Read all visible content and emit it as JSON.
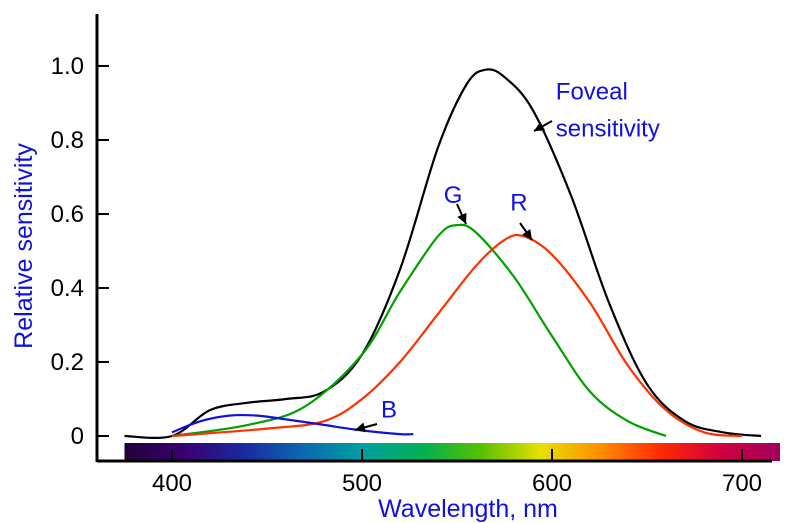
{
  "chart_data": {
    "type": "line",
    "title": "",
    "xlabel": "Wavelength, nm",
    "ylabel": "Relative sensitivity",
    "xlim": [
      375,
      720
    ],
    "ylim": [
      0,
      1.12
    ],
    "grid": false,
    "x_ticks": [
      "400",
      "500",
      "600",
      "700"
    ],
    "y_ticks": [
      "0",
      "0.2",
      "0.4",
      "0.6",
      "0.8",
      "1.0"
    ],
    "series": [
      {
        "name": "Foveal sensitivity",
        "color": "#000000",
        "points": [
          [
            375,
            0.0
          ],
          [
            400,
            0.0
          ],
          [
            420,
            0.07
          ],
          [
            440,
            0.09
          ],
          [
            460,
            0.1
          ],
          [
            480,
            0.12
          ],
          [
            500,
            0.22
          ],
          [
            520,
            0.45
          ],
          [
            540,
            0.78
          ],
          [
            555,
            0.95
          ],
          [
            565,
            0.99
          ],
          [
            575,
            0.97
          ],
          [
            590,
            0.88
          ],
          [
            610,
            0.65
          ],
          [
            630,
            0.36
          ],
          [
            650,
            0.14
          ],
          [
            670,
            0.04
          ],
          [
            690,
            0.01
          ],
          [
            710,
            0.0
          ]
        ]
      },
      {
        "name": "G",
        "color": "#00a000",
        "points": [
          [
            400,
            0.0
          ],
          [
            440,
            0.03
          ],
          [
            470,
            0.08
          ],
          [
            500,
            0.22
          ],
          [
            520,
            0.39
          ],
          [
            540,
            0.54
          ],
          [
            550,
            0.57
          ],
          [
            560,
            0.55
          ],
          [
            580,
            0.43
          ],
          [
            600,
            0.27
          ],
          [
            620,
            0.12
          ],
          [
            640,
            0.04
          ],
          [
            660,
            0.0
          ]
        ]
      },
      {
        "name": "R",
        "color": "#ff3000",
        "points": [
          [
            400,
            0.0
          ],
          [
            450,
            0.02
          ],
          [
            480,
            0.04
          ],
          [
            500,
            0.1
          ],
          [
            520,
            0.2
          ],
          [
            540,
            0.33
          ],
          [
            560,
            0.46
          ],
          [
            575,
            0.53
          ],
          [
            585,
            0.54
          ],
          [
            600,
            0.49
          ],
          [
            620,
            0.36
          ],
          [
            640,
            0.19
          ],
          [
            660,
            0.07
          ],
          [
            680,
            0.01
          ],
          [
            700,
            0.0
          ]
        ]
      },
      {
        "name": "B",
        "color": "#1010e0",
        "points": [
          [
            400,
            0.01
          ],
          [
            415,
            0.04
          ],
          [
            430,
            0.055
          ],
          [
            445,
            0.055
          ],
          [
            460,
            0.045
          ],
          [
            480,
            0.03
          ],
          [
            500,
            0.015
          ],
          [
            520,
            0.005
          ],
          [
            527,
            0.005
          ]
        ]
      }
    ],
    "annotations": [
      {
        "text": "Foveal",
        "x": 602,
        "y": 0.91
      },
      {
        "text": "sensitivity",
        "x": 602,
        "y": 0.81
      },
      {
        "text": "G",
        "x": 543,
        "y": 0.63
      },
      {
        "text": "R",
        "x": 578,
        "y": 0.61
      },
      {
        "text": "B",
        "x": 510,
        "y": 0.05
      }
    ],
    "spectrum_bar": {
      "range": [
        375,
        720
      ],
      "colors": [
        "#22003a",
        "#3a0070",
        "#1a2aa0",
        "#0a6ab0",
        "#00a0a0",
        "#00b050",
        "#5ac000",
        "#e8e000",
        "#ff8c00",
        "#ff2a00",
        "#d00040",
        "#a0005a"
      ]
    }
  }
}
